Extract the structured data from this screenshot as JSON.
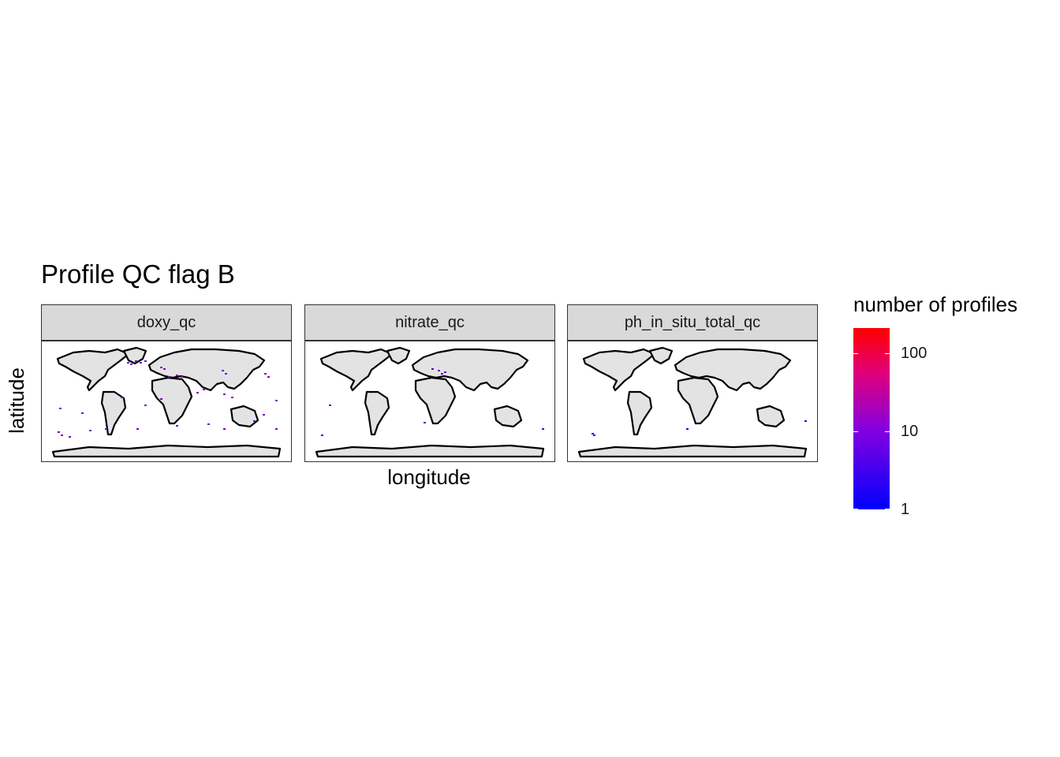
{
  "title": "Profile QC flag B",
  "xlabel": "longitude",
  "ylabel": "latitude",
  "panels": [
    {
      "label": "doxy_qc"
    },
    {
      "label": "nitrate_qc"
    },
    {
      "label": "ph_in_situ_total_qc"
    }
  ],
  "legend": {
    "title": "number of profiles",
    "scale": "log",
    "color_low": "#0000ff",
    "color_high": "#ff0000",
    "ticks": [
      "100",
      "10",
      "1"
    ]
  },
  "colors": {
    "land": "#e3e3e3",
    "coast": "#000000",
    "strip_bg": "#d9d9d9"
  }
}
